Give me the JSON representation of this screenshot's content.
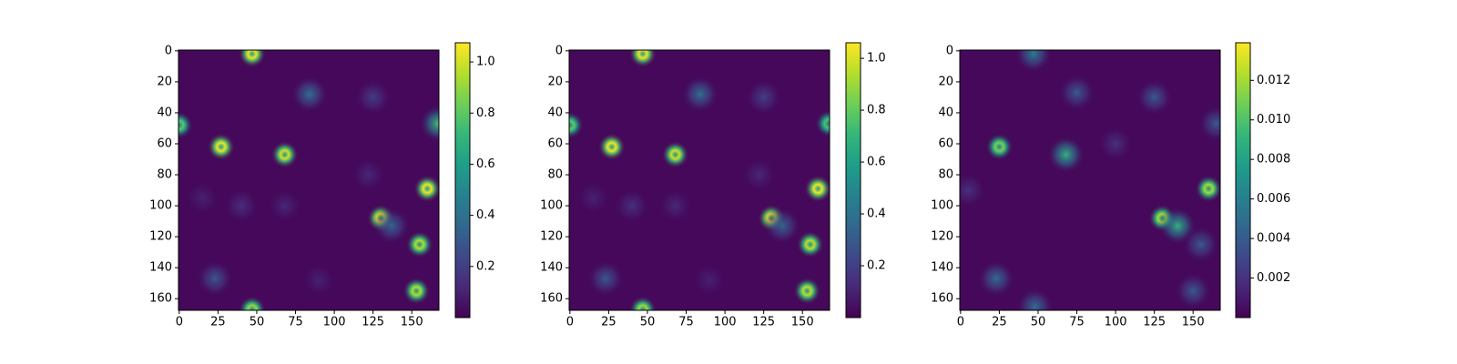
{
  "chart_data": [
    {
      "type": "heatmap",
      "colormap": "viridis",
      "xlim": [
        -0.5,
        167.5
      ],
      "ylim": [
        167.5,
        -0.5
      ],
      "xticks": [
        0,
        25,
        50,
        75,
        100,
        125,
        150
      ],
      "yticks": [
        0,
        20,
        40,
        60,
        80,
        100,
        120,
        140,
        160
      ],
      "clim": [
        0,
        1.075
      ],
      "cticks": [
        0.2,
        0.4,
        0.6,
        0.8,
        {
          "value": 1.0,
          "label": "1.0"
        }
      ],
      "spots": [
        {
          "x": 47,
          "y": 2,
          "value": 1.05
        },
        {
          "x": 27,
          "y": 62,
          "value": 1.05
        },
        {
          "x": 68,
          "y": 67,
          "value": 1.0
        },
        {
          "x": 160,
          "y": 89,
          "value": 1.05
        },
        {
          "x": 130,
          "y": 108,
          "value": 1.05
        },
        {
          "x": 155,
          "y": 125,
          "value": 0.95
        },
        {
          "x": 153,
          "y": 155,
          "value": 0.95
        },
        {
          "x": 47,
          "y": 167,
          "value": 0.9
        },
        {
          "x": 0,
          "y": 48,
          "value": 0.8
        },
        {
          "x": 167,
          "y": 47,
          "value": 0.75
        },
        {
          "x": 84,
          "y": 28,
          "value": 0.4
        },
        {
          "x": 125,
          "y": 30,
          "value": 0.2
        },
        {
          "x": 23,
          "y": 147,
          "value": 0.3
        },
        {
          "x": 40,
          "y": 100,
          "value": 0.15
        },
        {
          "x": 122,
          "y": 80,
          "value": 0.12
        },
        {
          "x": 68,
          "y": 100,
          "value": 0.12
        },
        {
          "x": 137,
          "y": 113,
          "value": 0.35
        },
        {
          "x": 90,
          "y": 148,
          "value": 0.1
        },
        {
          "x": 15,
          "y": 95,
          "value": 0.1
        }
      ]
    },
    {
      "type": "heatmap",
      "colormap": "viridis",
      "xlim": [
        -0.5,
        167.5
      ],
      "ylim": [
        167.5,
        -0.5
      ],
      "xticks": [
        0,
        25,
        50,
        75,
        100,
        125,
        150
      ],
      "yticks": [
        0,
        20,
        40,
        60,
        80,
        100,
        120,
        140,
        160
      ],
      "clim": [
        0,
        1.06
      ],
      "cticks": [
        0.2,
        0.4,
        0.6,
        0.8,
        {
          "value": 1.0,
          "label": "1.0"
        }
      ],
      "spots": [
        {
          "x": 47,
          "y": 2,
          "value": 1.04
        },
        {
          "x": 27,
          "y": 62,
          "value": 1.04
        },
        {
          "x": 68,
          "y": 67,
          "value": 0.98
        },
        {
          "x": 160,
          "y": 89,
          "value": 1.04
        },
        {
          "x": 130,
          "y": 108,
          "value": 1.04
        },
        {
          "x": 155,
          "y": 125,
          "value": 0.95
        },
        {
          "x": 153,
          "y": 155,
          "value": 0.95
        },
        {
          "x": 47,
          "y": 167,
          "value": 0.9
        },
        {
          "x": 0,
          "y": 48,
          "value": 0.8
        },
        {
          "x": 167,
          "y": 47,
          "value": 0.75
        },
        {
          "x": 84,
          "y": 28,
          "value": 0.4
        },
        {
          "x": 125,
          "y": 30,
          "value": 0.2
        },
        {
          "x": 23,
          "y": 147,
          "value": 0.3
        },
        {
          "x": 40,
          "y": 100,
          "value": 0.15
        },
        {
          "x": 122,
          "y": 80,
          "value": 0.12
        },
        {
          "x": 68,
          "y": 100,
          "value": 0.12
        },
        {
          "x": 137,
          "y": 113,
          "value": 0.35
        },
        {
          "x": 90,
          "y": 148,
          "value": 0.1
        },
        {
          "x": 15,
          "y": 95,
          "value": 0.1
        }
      ]
    },
    {
      "type": "heatmap",
      "colormap": "viridis",
      "xlim": [
        -0.5,
        167.5
      ],
      "ylim": [
        167.5,
        -0.5
      ],
      "xticks": [
        0,
        25,
        50,
        75,
        100,
        125,
        150
      ],
      "yticks": [
        0,
        20,
        40,
        60,
        80,
        100,
        120,
        140,
        160
      ],
      "clim": [
        0,
        0.0139
      ],
      "cticks": [
        0.002,
        0.004,
        0.006,
        0.008,
        {
          "value": 0.01,
          "label": "0.010"
        },
        0.012
      ],
      "spots": [
        {
          "x": 25,
          "y": 62,
          "value": 0.011
        },
        {
          "x": 68,
          "y": 67,
          "value": 0.009
        },
        {
          "x": 160,
          "y": 89,
          "value": 0.012
        },
        {
          "x": 130,
          "y": 108,
          "value": 0.012
        },
        {
          "x": 140,
          "y": 113,
          "value": 0.009
        },
        {
          "x": 47,
          "y": 2,
          "value": 0.006
        },
        {
          "x": 75,
          "y": 27,
          "value": 0.004
        },
        {
          "x": 125,
          "y": 30,
          "value": 0.004
        },
        {
          "x": 23,
          "y": 147,
          "value": 0.005
        },
        {
          "x": 48,
          "y": 165,
          "value": 0.005
        },
        {
          "x": 155,
          "y": 125,
          "value": 0.004
        },
        {
          "x": 150,
          "y": 155,
          "value": 0.004
        },
        {
          "x": 165,
          "y": 47,
          "value": 0.004
        },
        {
          "x": 5,
          "y": 90,
          "value": 0.002
        },
        {
          "x": 100,
          "y": 60,
          "value": 0.002
        }
      ]
    }
  ]
}
